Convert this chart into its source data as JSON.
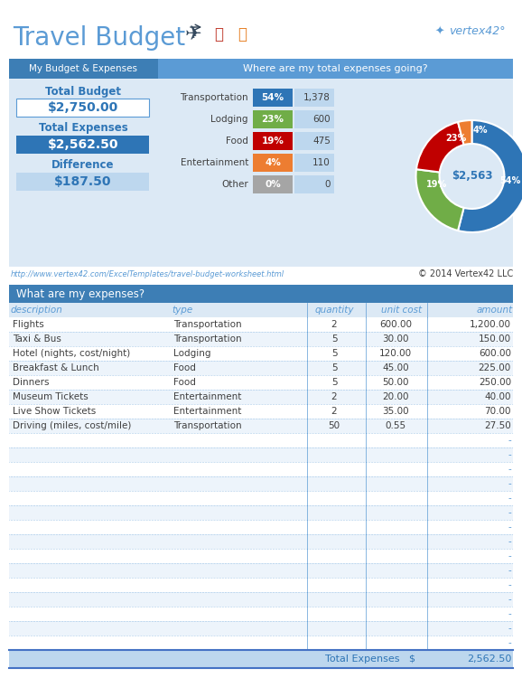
{
  "title": "Travel Budget",
  "budget_section_title": "My Budget & Expenses",
  "total_budget_label": "Total Budget",
  "total_budget_value": "$2,750.00",
  "total_expenses_label": "Total Expenses",
  "total_expenses_value": "$2,562.50",
  "difference_label": "Difference",
  "difference_value": "$187.50",
  "right_section_title": "Where are my total expenses going?",
  "categories": [
    "Transportation",
    "Lodging",
    "Food",
    "Entertainment",
    "Other"
  ],
  "percentages": [
    "54%",
    "23%",
    "19%",
    "4%",
    "0%"
  ],
  "amounts": [
    "1,378",
    "600",
    "475",
    "110",
    "0"
  ],
  "cat_colors": [
    "#2e75b6",
    "#70ad47",
    "#c00000",
    "#ed7d31",
    "#a5a5a5"
  ],
  "pie_values": [
    54,
    23,
    19,
    4
  ],
  "pie_cols": [
    "#2e75b6",
    "#70ad47",
    "#c00000",
    "#ed7d31"
  ],
  "pie_center_label": "$2,563",
  "pie_pct_labels": [
    "54%",
    "23%",
    "19%",
    "4%"
  ],
  "link_text": "http://www.vertex42.com/ExcelTemplates/travel-budget-worksheet.html",
  "copyright_text": "© 2014 Vertex42 LLC",
  "table_header": "What are my expenses?",
  "col_headers": [
    "description",
    "type",
    "quantity",
    "unit cost",
    "amount"
  ],
  "rows": [
    [
      "Flights",
      "Transportation",
      "2",
      "600.00",
      "1,200.00"
    ],
    [
      "Taxi & Bus",
      "Transportation",
      "5",
      "30.00",
      "150.00"
    ],
    [
      "Hotel (nights, cost/night)",
      "Lodging",
      "5",
      "120.00",
      "600.00"
    ],
    [
      "Breakfast & Lunch",
      "Food",
      "5",
      "45.00",
      "225.00"
    ],
    [
      "Dinners",
      "Food",
      "5",
      "50.00",
      "250.00"
    ],
    [
      "Museum Tickets",
      "Entertainment",
      "2",
      "20.00",
      "40.00"
    ],
    [
      "Live Show Tickets",
      "Entertainment",
      "2",
      "35.00",
      "70.00"
    ],
    [
      "Driving (miles, cost/mile)",
      "Transportation",
      "50",
      "0.55",
      "27.50"
    ]
  ],
  "empty_rows": 15,
  "total_value": "2,562.50",
  "color_header_dark": "#3d7eb5",
  "color_header_mid": "#4d8fc6",
  "color_header_right": "#5b9bd5",
  "color_light_blue": "#dce9f5",
  "color_white": "#ffffff",
  "color_text_blue": "#2e75b6",
  "color_row_alt": "#eaf3fb",
  "color_divider": "#5b9bd5"
}
